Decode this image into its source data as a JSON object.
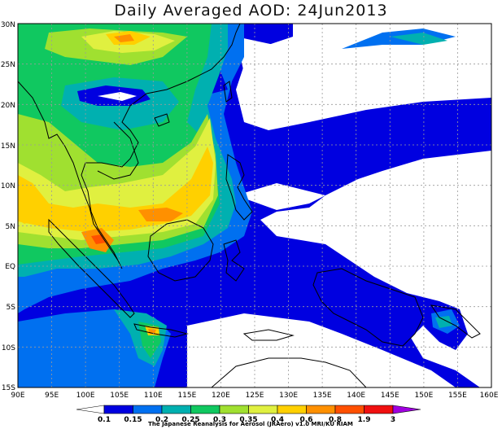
{
  "title": "Daily Averaged AOD: 24Jun2013",
  "lat_labels": [
    "30N",
    "25N",
    "20N",
    "15N",
    "10N",
    "5N",
    "EQ",
    "5S",
    "10S",
    "15S"
  ],
  "lon_labels": [
    "90E",
    "95E",
    "100E",
    "105E",
    "110E",
    "115E",
    "120E",
    "125E",
    "130E",
    "135E",
    "140E",
    "145E",
    "150E",
    "155E",
    "160E"
  ],
  "colorbar": {
    "levels": [
      "0.1",
      "0.15",
      "0.2",
      "0.25",
      "0.3",
      "0.35",
      "0.4",
      "0.6",
      "0.8",
      "1.9",
      "3"
    ],
    "colors": [
      "#ffffff",
      "#0000e0",
      "#0070f0",
      "#00b0b0",
      "#10c860",
      "#a0e030",
      "#e0f040",
      "#ffd000",
      "#ff9000",
      "#ff5000",
      "#f01010",
      "#a000e0"
    ]
  },
  "credit": "The Japanese Reanalysis for Aerosol (JRAero) v1.0 MRI/KU RIAM"
}
